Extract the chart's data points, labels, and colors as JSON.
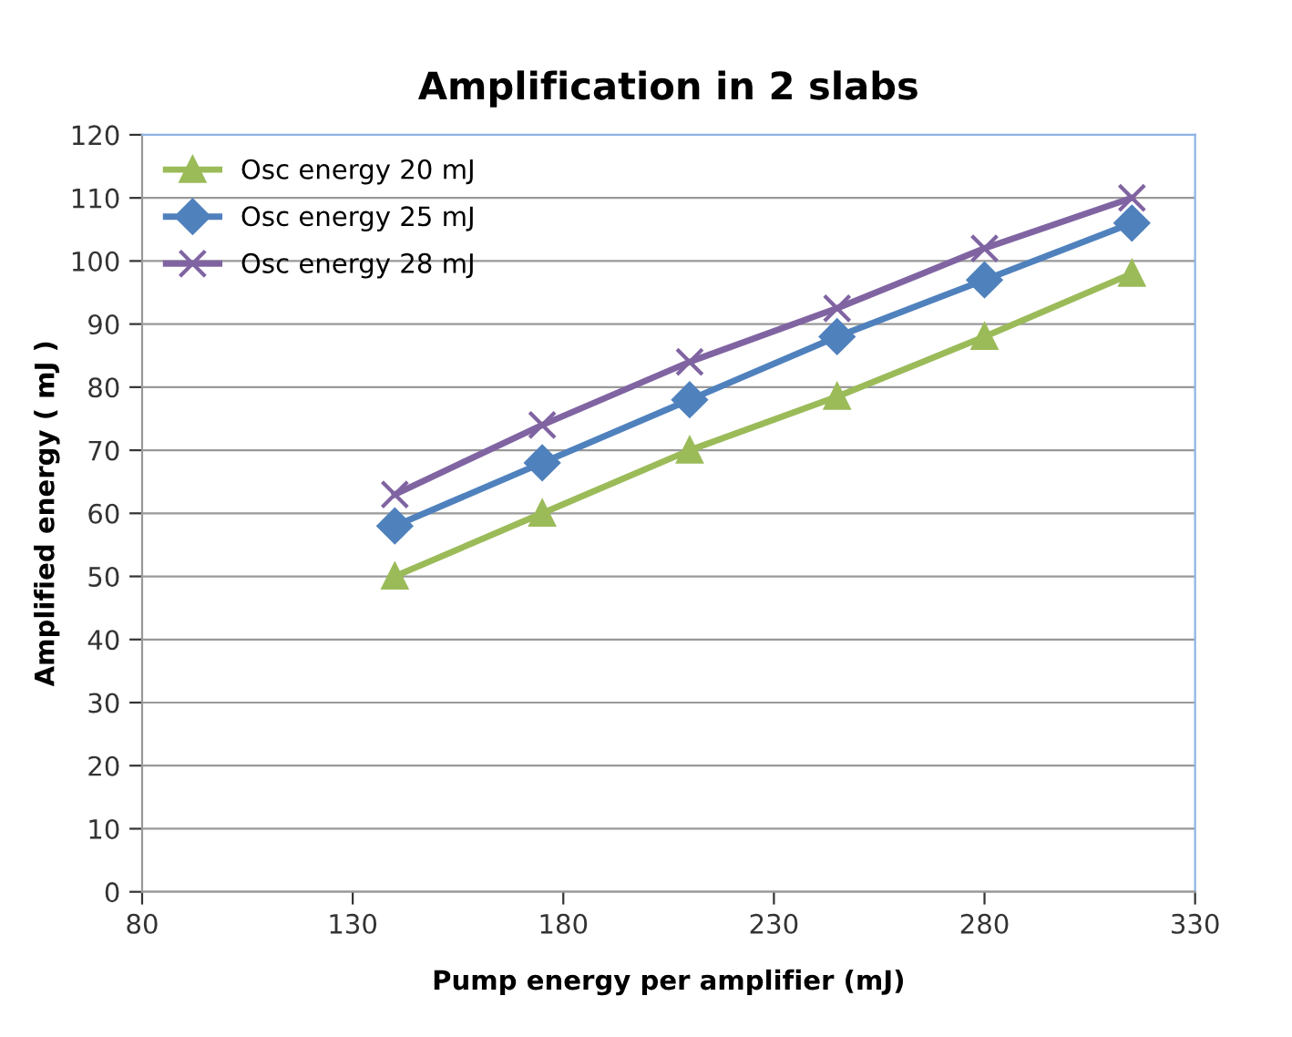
{
  "chart_data": {
    "type": "line",
    "title": "Amplification in 2 slabs",
    "xlabel": "Pump energy per amplifier (mJ)",
    "ylabel": "Amplified energy ( mJ )",
    "x": [
      140,
      175,
      210,
      245,
      280,
      315
    ],
    "series": [
      {
        "name": "Osc energy 20 mJ",
        "color": "#9bbb59",
        "marker": "triangle",
        "values": [
          50,
          60,
          70,
          78.5,
          88,
          98
        ]
      },
      {
        "name": "Osc energy 25 mJ",
        "color": "#4f81bd",
        "marker": "diamond",
        "values": [
          58,
          68,
          78,
          88,
          97,
          106
        ]
      },
      {
        "name": "Osc energy 28 mJ",
        "color": "#8064a2",
        "marker": "cross",
        "values": [
          63,
          74,
          84,
          92.5,
          102,
          110
        ]
      }
    ],
    "xlim": [
      80,
      330
    ],
    "xticks": [
      80,
      130,
      180,
      230,
      280,
      330
    ],
    "ylim": [
      0,
      120
    ],
    "yticks": [
      0,
      10,
      20,
      30,
      40,
      50,
      60,
      70,
      80,
      90,
      100,
      110,
      120
    ],
    "grid": "y",
    "legend": "top left",
    "line_style": "solid"
  }
}
